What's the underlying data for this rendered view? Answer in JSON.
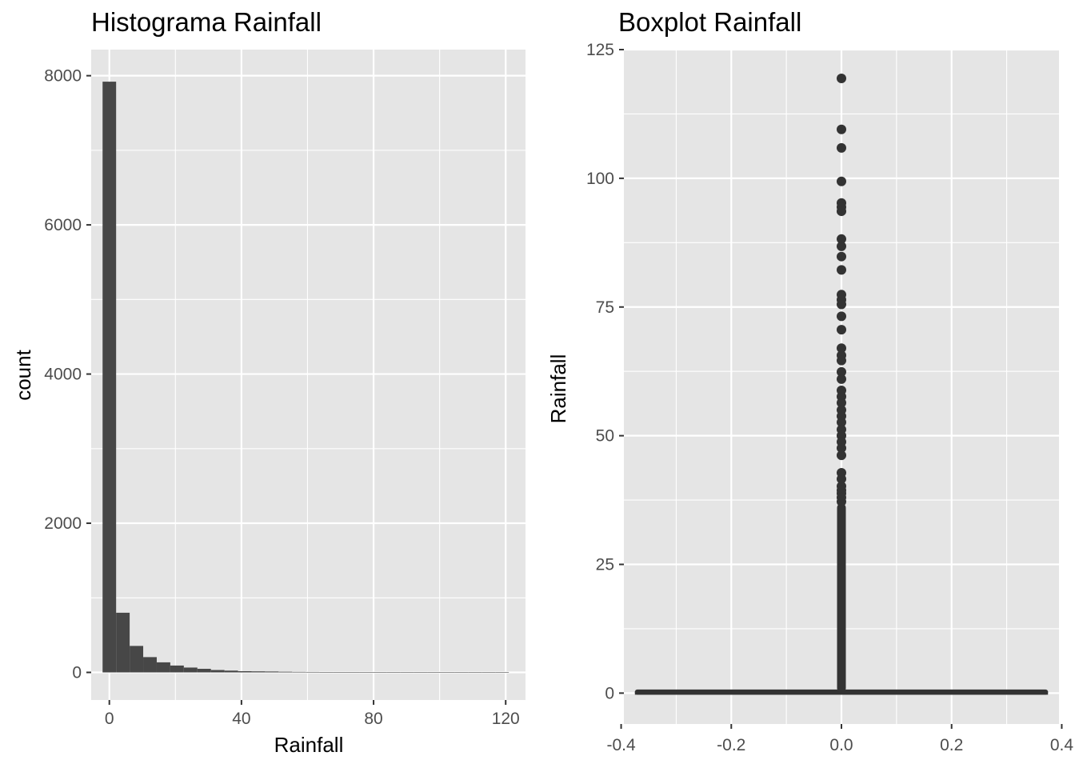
{
  "chart_data": [
    {
      "type": "bar",
      "subtype": "histogram",
      "title": "Histograma Rainfall",
      "xlabel": "Rainfall",
      "ylabel": "count",
      "xlim": [
        -5.5,
        126
      ],
      "ylim": [
        -370,
        8350
      ],
      "xticks": [
        0,
        40,
        80,
        120
      ],
      "xtick_labels": [
        "0",
        "40",
        "80",
        "120"
      ],
      "yticks": [
        0,
        2000,
        4000,
        6000,
        8000
      ],
      "ytick_labels": [
        "0",
        "2000",
        "4000",
        "6000",
        "8000"
      ],
      "grid": true,
      "bin_width": 4.1,
      "bin_start": -2.05,
      "colors": {
        "panel": "#e5e5e5",
        "grid": "#ffffff",
        "bar": "#474747"
      },
      "values": [
        7920,
        800,
        355,
        205,
        135,
        92,
        65,
        48,
        32,
        24,
        16,
        14,
        12,
        9,
        7,
        6,
        5,
        4,
        4,
        3,
        3,
        2,
        2,
        2,
        2,
        1,
        1,
        1,
        1,
        1
      ]
    },
    {
      "type": "boxplot",
      "title": "Boxplot Rainfall",
      "xlabel": "",
      "ylabel": "Rainfall",
      "xlim": [
        -0.395,
        0.395
      ],
      "ylim": [
        -6,
        125
      ],
      "xticks": [
        -0.4,
        -0.2,
        0.0,
        0.2,
        0.4
      ],
      "xtick_labels": [
        "-0.4",
        "-0.2",
        "0.0",
        "0.2",
        "0.4"
      ],
      "yticks": [
        0,
        25,
        50,
        75,
        100,
        125
      ],
      "ytick_labels": [
        "0",
        "25",
        "50",
        "75",
        "100",
        "125"
      ],
      "grid": true,
      "box": {
        "x": 0,
        "width": 0.75,
        "q1": 0,
        "median": 0,
        "q3": 0.4,
        "whisker_low": 0,
        "whisker_high": 0.8
      },
      "outliers_dense_range": [
        1,
        36
      ],
      "outliers": [
        119.4,
        109.5,
        105.9,
        99.4,
        95.2,
        94.4,
        93.6,
        88.2,
        86.8,
        84.8,
        82.2,
        77.4,
        76.4,
        75.5,
        73.2,
        70.6,
        67.0,
        65.6,
        64.6,
        62.4,
        61.0,
        58.8,
        57.6,
        56.4,
        55.0,
        53.8,
        52.6,
        51.2,
        50.0,
        48.8,
        47.6,
        46.2,
        42.8,
        41.6,
        40.2,
        39.4,
        38.8,
        38.0,
        37.2
      ]
    }
  ]
}
